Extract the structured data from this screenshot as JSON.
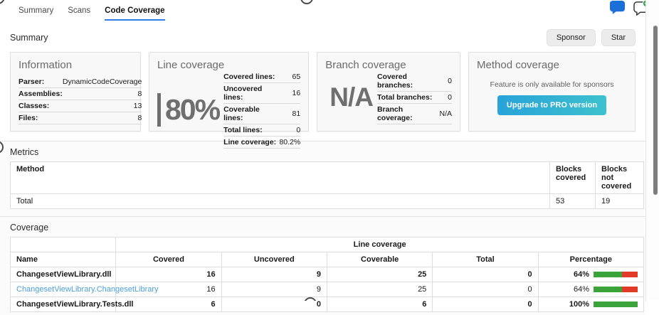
{
  "tabs": {
    "items": [
      {
        "label": "Summary",
        "active": false
      },
      {
        "label": "Scans",
        "active": false
      },
      {
        "label": "Code Coverage",
        "active": true
      }
    ]
  },
  "header": {
    "icons": [
      {
        "name": "comment-bubble-icon",
        "style": "filled-blue"
      },
      {
        "name": "add-comment-bubble-icon",
        "style": "outline-with-green-plus"
      }
    ]
  },
  "summary": {
    "title": "Summary",
    "sponsor_button": "Sponsor",
    "star_button": "Star"
  },
  "cards": {
    "information": {
      "title": "Information",
      "rows": [
        {
          "label": "Parser:",
          "value": "DynamicCodeCoverage"
        },
        {
          "label": "Assemblies:",
          "value": "8"
        },
        {
          "label": "Classes:",
          "value": "13"
        },
        {
          "label": "Files:",
          "value": "8"
        }
      ]
    },
    "line_coverage": {
      "title": "Line coverage",
      "big_value": "80%",
      "rows": [
        {
          "label": "Covered lines:",
          "value": "65"
        },
        {
          "label": "Uncovered lines:",
          "value": "16"
        },
        {
          "label": "Coverable lines:",
          "value": "81"
        },
        {
          "label": "Total lines:",
          "value": "0"
        },
        {
          "label": "Line coverage:",
          "value": "80.2%"
        }
      ]
    },
    "branch_coverage": {
      "title": "Branch coverage",
      "big_value": "N/A",
      "rows": [
        {
          "label": "Covered branches:",
          "value": "0"
        },
        {
          "label": "Total branches:",
          "value": "0"
        },
        {
          "label": "Branch coverage:",
          "value": "N/A"
        }
      ]
    },
    "method_coverage": {
      "title": "Method coverage",
      "note": "Feature is only available for sponsors",
      "button_label": "Upgrade to PRO version"
    }
  },
  "metrics": {
    "title": "Metrics",
    "table": {
      "headers": [
        "Method",
        "Blocks covered",
        "Blocks not covered"
      ],
      "rows": [
        {
          "method": "Total",
          "blocks_covered": "53",
          "blocks_not_covered": "19"
        }
      ]
    }
  },
  "coverage": {
    "title": "Coverage",
    "table": {
      "group_header": "Line coverage",
      "headers": [
        "Name",
        "Covered",
        "Uncovered",
        "Coverable",
        "Total",
        "Percentage"
      ],
      "rows": [
        {
          "name": "ChangesetViewLibrary.dll",
          "covered": "16",
          "uncovered": "9",
          "coverable": "25",
          "total": "0",
          "percentage": "64%",
          "green_pct": 64
        },
        {
          "name": "ChangesetViewLibrary.ChangesetLibrary",
          "covered": "16",
          "uncovered": "9",
          "coverable": "25",
          "total": "0",
          "percentage": "64%",
          "green_pct": 64
        },
        {
          "name": "ChangesetViewLibrary.Tests.dll",
          "covered": "6",
          "uncovered": "0",
          "coverable": "6",
          "total": "0",
          "percentage": "100%",
          "green_pct": 100
        }
      ]
    }
  },
  "colors": {
    "active_tab_underline": "#2e7ce4",
    "link": "#4a9fdc",
    "bar_green": "#3aa33a",
    "bar_red": "#e23a28",
    "pro_button_gradient_start": "#28a3d9",
    "pro_button_gradient_end": "#3ec1ce",
    "chat_icon_blue": "#1b6fd6",
    "badge_green": "#2ea44f"
  }
}
